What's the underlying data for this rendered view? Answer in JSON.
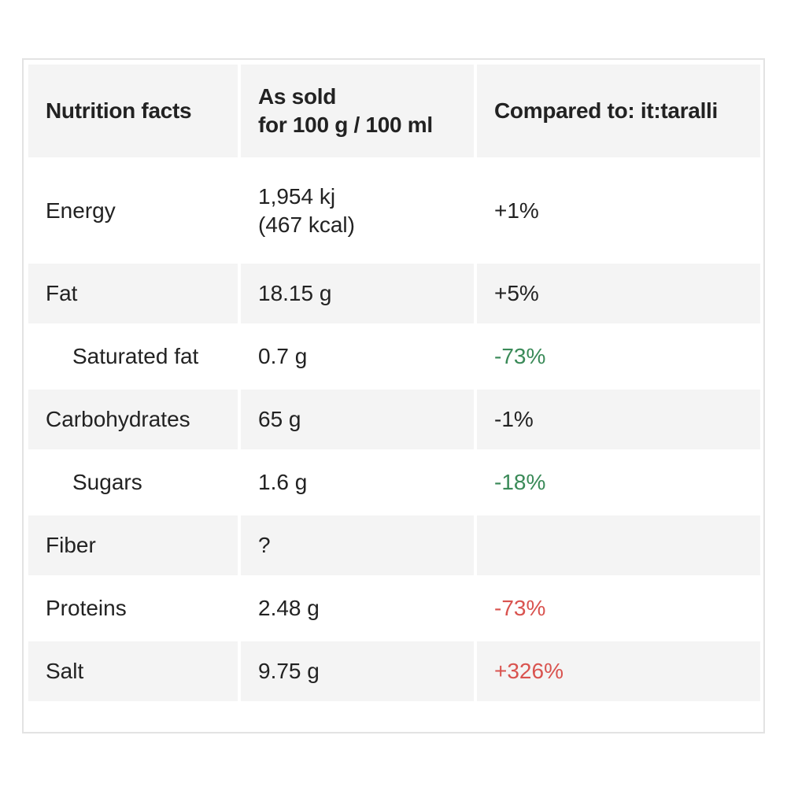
{
  "table": {
    "headers": {
      "col1": "Nutrition facts",
      "col2_line1": "As sold",
      "col2_line2": "for 100 g / 100 ml",
      "col3": "Compared to: it:taralli"
    },
    "rows": [
      {
        "nutrient": "Energy",
        "value_line1": "1,954 kj",
        "value_line2": "(467 kcal)",
        "compare": "+1%",
        "compare_status": "neutral",
        "indented": false
      },
      {
        "nutrient": "Fat",
        "value": "18.15 g",
        "compare": "+5%",
        "compare_status": "neutral",
        "indented": false
      },
      {
        "nutrient": "Saturated fat",
        "value": "0.7 g",
        "compare": "-73%",
        "compare_status": "good",
        "indented": true
      },
      {
        "nutrient": "Carbohydrates",
        "value": "65 g",
        "compare": "-1%",
        "compare_status": "neutral",
        "indented": false
      },
      {
        "nutrient": "Sugars",
        "value": "1.6 g",
        "compare": "-18%",
        "compare_status": "good",
        "indented": true
      },
      {
        "nutrient": "Fiber",
        "value": "?",
        "compare": "",
        "compare_status": "neutral",
        "indented": false
      },
      {
        "nutrient": "Proteins",
        "value": "2.48 g",
        "compare": "-73%",
        "compare_status": "bad",
        "indented": false
      },
      {
        "nutrient": "Salt",
        "value": "9.75 g",
        "compare": "+326%",
        "compare_status": "bad",
        "indented": false
      }
    ]
  },
  "colors": {
    "good": "#3a8a58",
    "bad": "#d9534f",
    "neutral": "#222222",
    "row_shade": "#f4f4f4",
    "border": "#e3e3e3"
  }
}
